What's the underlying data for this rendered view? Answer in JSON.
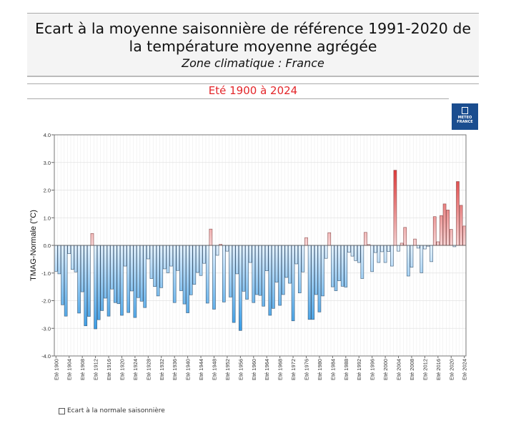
{
  "header": {
    "title": "Ecart à la moyenne saisonnière  de référence 1991-2020  de la température moyenne  agrégée",
    "zone": "Zone climatique : France",
    "period": "Eté 1900 à 2024"
  },
  "logo": {
    "text": "METEO FRANCE"
  },
  "colors": {
    "negative": "#3a9de6",
    "positive": "#e03b3b",
    "subtitle": "#e3262a",
    "logo": "#1a4d8f"
  },
  "chart_data": {
    "type": "bar",
    "ylabel": "TMAG-Normale (°C)",
    "ylim": [
      -4,
      4
    ],
    "yticks": [
      "4.0",
      "3.0",
      "2.0",
      "1.0",
      "0.0",
      "-1.0",
      "-2.0",
      "-3.0",
      "-4.0"
    ],
    "grid": true,
    "legend": "bottom-left",
    "series": [
      {
        "name": "Ecart à la normale saisonnière"
      }
    ],
    "x_label_prefix": "Eté",
    "x_start": 1900,
    "x_label_step": 4,
    "values": [
      -0.94,
      -1.03,
      -2.15,
      -2.56,
      -0.3,
      -0.87,
      -0.96,
      -2.45,
      -1.68,
      -2.91,
      -2.57,
      0.43,
      -3.02,
      -2.69,
      -2.36,
      -1.91,
      -2.56,
      -1.58,
      -2.07,
      -2.11,
      -2.53,
      -0.75,
      -2.43,
      -1.65,
      -2.61,
      -1.89,
      -2.02,
      -2.25,
      -0.49,
      -1.2,
      -1.49,
      -1.83,
      -1.53,
      -0.85,
      -0.99,
      -0.75,
      -2.07,
      -0.91,
      -1.64,
      -2.12,
      -2.44,
      -1.79,
      -1.41,
      -0.98,
      -1.09,
      -0.65,
      -2.09,
      0.59,
      -2.31,
      -0.36,
      0.04,
      -2.05,
      -0.21,
      -1.87,
      -2.79,
      -1.03,
      -3.08,
      -1.66,
      -1.95,
      -0.62,
      -2.07,
      -1.78,
      -1.81,
      -2.2,
      -0.92,
      -2.53,
      -2.28,
      -1.33,
      -2.17,
      -1.78,
      -1.16,
      -1.37,
      -2.73,
      -0.67,
      -1.72,
      -0.96,
      0.28,
      -2.68,
      -2.68,
      -1.78,
      -2.41,
      -1.83,
      -0.47,
      0.46,
      -1.5,
      -1.64,
      -1.28,
      -1.48,
      -1.51,
      -0.25,
      -0.39,
      -0.55,
      -0.62,
      -1.2,
      0.47,
      0.03,
      -0.95,
      -0.26,
      -0.62,
      -0.23,
      -0.62,
      -0.22,
      -0.75,
      2.72,
      -0.21,
      0.08,
      0.65,
      -1.11,
      -0.79,
      0.23,
      -0.1,
      -0.99,
      -0.13,
      -0.03,
      -0.59,
      1.04,
      0.13,
      1.08,
      1.5,
      1.28,
      0.58,
      -0.05,
      2.31,
      1.45,
      0.7
    ]
  }
}
